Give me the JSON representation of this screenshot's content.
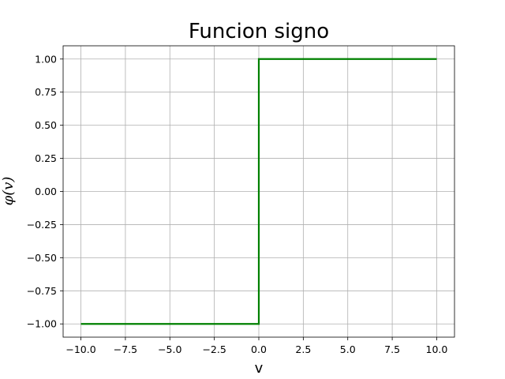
{
  "chart_data": {
    "type": "line",
    "title": "Funcion signo",
    "xlabel": "v",
    "ylabel": "φ(v)",
    "xlim": [
      -11,
      11
    ],
    "ylim": [
      -1.1,
      1.1
    ],
    "x_ticks": [
      -10.0,
      -7.5,
      -5.0,
      -2.5,
      0.0,
      2.5,
      5.0,
      7.5,
      10.0
    ],
    "x_tick_labels": [
      "−10.0",
      "−7.5",
      "−5.0",
      "−2.5",
      "0.0",
      "2.5",
      "5.0",
      "7.5",
      "10.0"
    ],
    "y_ticks": [
      -1.0,
      -0.75,
      -0.5,
      -0.25,
      0.0,
      0.25,
      0.5,
      0.75,
      1.0
    ],
    "y_tick_labels": [
      "−1.00",
      "−0.75",
      "−0.50",
      "−0.25",
      "0.00",
      "0.25",
      "0.50",
      "0.75",
      "1.00"
    ],
    "grid": true,
    "series": [
      {
        "color": "#008000",
        "x": [
          -10,
          0,
          0,
          10
        ],
        "y": [
          -1,
          -1,
          1,
          1
        ]
      }
    ]
  }
}
